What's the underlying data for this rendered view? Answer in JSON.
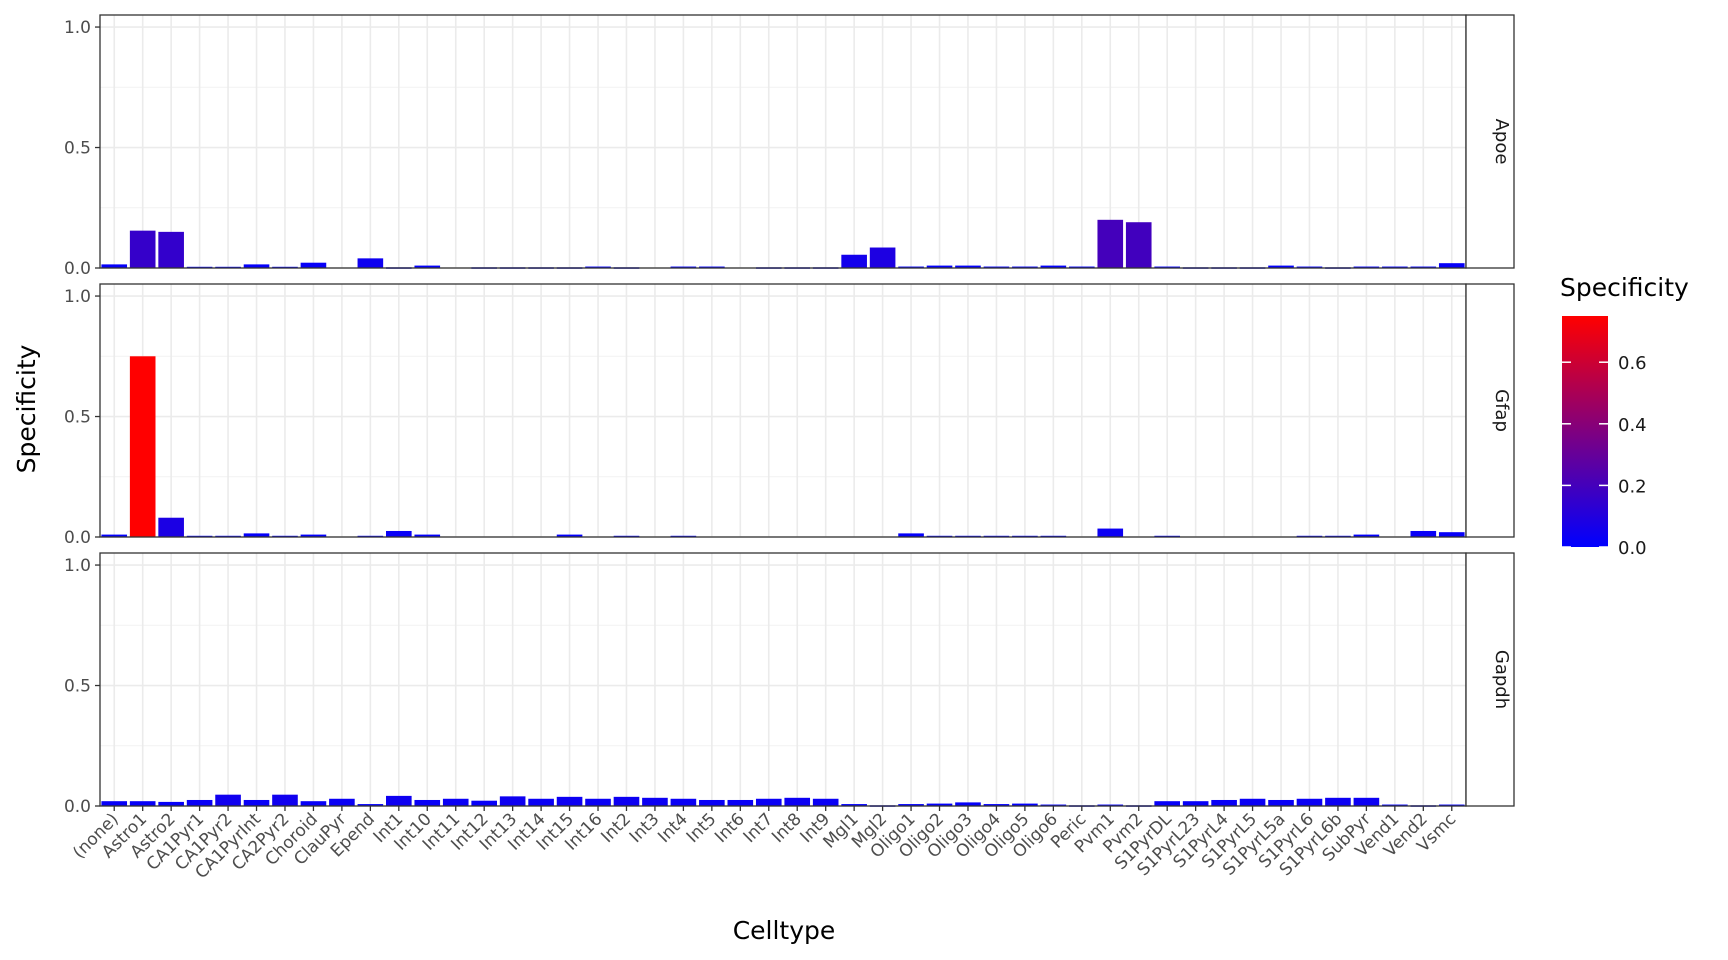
{
  "chart_data": {
    "type": "bar",
    "xlabel": "Celltype",
    "ylabel": "Specificity",
    "ylim": [
      0,
      1.05
    ],
    "yticks": [
      0.0,
      0.5,
      1.0
    ],
    "ytick_labels": [
      "0.0",
      "0.5",
      "1.0"
    ],
    "grid": true,
    "facet_direction": "rows",
    "categories": [
      "(none)",
      "Astro1",
      "Astro2",
      "CA1Pyr1",
      "CA1Pyr2",
      "CA1PyrInt",
      "CA2Pyr2",
      "Choroid",
      "ClauPyr",
      "Epend",
      "Int1",
      "Int10",
      "Int11",
      "Int12",
      "Int13",
      "Int14",
      "Int15",
      "Int16",
      "Int2",
      "Int3",
      "Int4",
      "Int5",
      "Int6",
      "Int7",
      "Int8",
      "Int9",
      "Mgl1",
      "Mgl2",
      "Oligo1",
      "Oligo2",
      "Oligo3",
      "Oligo4",
      "Oligo5",
      "Oligo6",
      "Peric",
      "Pvm1",
      "Pvm2",
      "S1PyrDL",
      "S1PyrL23",
      "S1PyrL4",
      "S1PyrL5",
      "S1PyrL5a",
      "S1PyrL6",
      "S1PyrL6b",
      "SubPyr",
      "Vend1",
      "Vend2",
      "Vsmc"
    ],
    "series": [
      {
        "name": "Apoe",
        "values": [
          0.015,
          0.155,
          0.15,
          0.005,
          0.005,
          0.015,
          0.005,
          0.022,
          0,
          0.04,
          0.003,
          0.01,
          0,
          0.003,
          0.003,
          0.003,
          0.003,
          0.006,
          0.003,
          0,
          0.006,
          0.006,
          0,
          0.003,
          0.003,
          0.003,
          0.055,
          0.085,
          0.006,
          0.01,
          0.01,
          0.006,
          0.006,
          0.01,
          0.006,
          0.2,
          0.19,
          0.006,
          0.003,
          0.003,
          0.003,
          0.01,
          0.006,
          0.003,
          0.006,
          0.006,
          0.006,
          0.02
        ]
      },
      {
        "name": "Gfap",
        "values": [
          0.01,
          0.75,
          0.08,
          0.005,
          0.005,
          0.015,
          0.005,
          0.01,
          0,
          0.005,
          0.025,
          0.01,
          0,
          0,
          0,
          0,
          0.01,
          0,
          0.005,
          0,
          0.005,
          0,
          0,
          0,
          0,
          0,
          0,
          0,
          0.015,
          0.005,
          0.005,
          0.005,
          0.005,
          0.005,
          0,
          0.035,
          0,
          0.005,
          0,
          0,
          0,
          0,
          0.005,
          0.005,
          0.01,
          0,
          0.025,
          0.02
        ]
      },
      {
        "name": "Gapdh",
        "values": [
          0.02,
          0.02,
          0.017,
          0.025,
          0.047,
          0.025,
          0.047,
          0.02,
          0.03,
          0.008,
          0.042,
          0.025,
          0.03,
          0.022,
          0.04,
          0.03,
          0.038,
          0.03,
          0.038,
          0.034,
          0.03,
          0.025,
          0.025,
          0.03,
          0.034,
          0.03,
          0.008,
          0.003,
          0.008,
          0.01,
          0.015,
          0.008,
          0.01,
          0.006,
          0.003,
          0.006,
          0.003,
          0.02,
          0.02,
          0.025,
          0.03,
          0.025,
          0.03,
          0.034,
          0.034,
          0.006,
          0.003,
          0.006
        ]
      }
    ],
    "legend": {
      "title": "Specificity",
      "position": "right",
      "type": "colorbar",
      "breaks": [
        0.0,
        0.2,
        0.4,
        0.6
      ],
      "break_labels": [
        "0.0",
        "0.2",
        "0.4",
        "0.6"
      ],
      "range": [
        0,
        0.75
      ],
      "colors": {
        "low": "#0000ff",
        "high": "#ff0000"
      }
    }
  }
}
